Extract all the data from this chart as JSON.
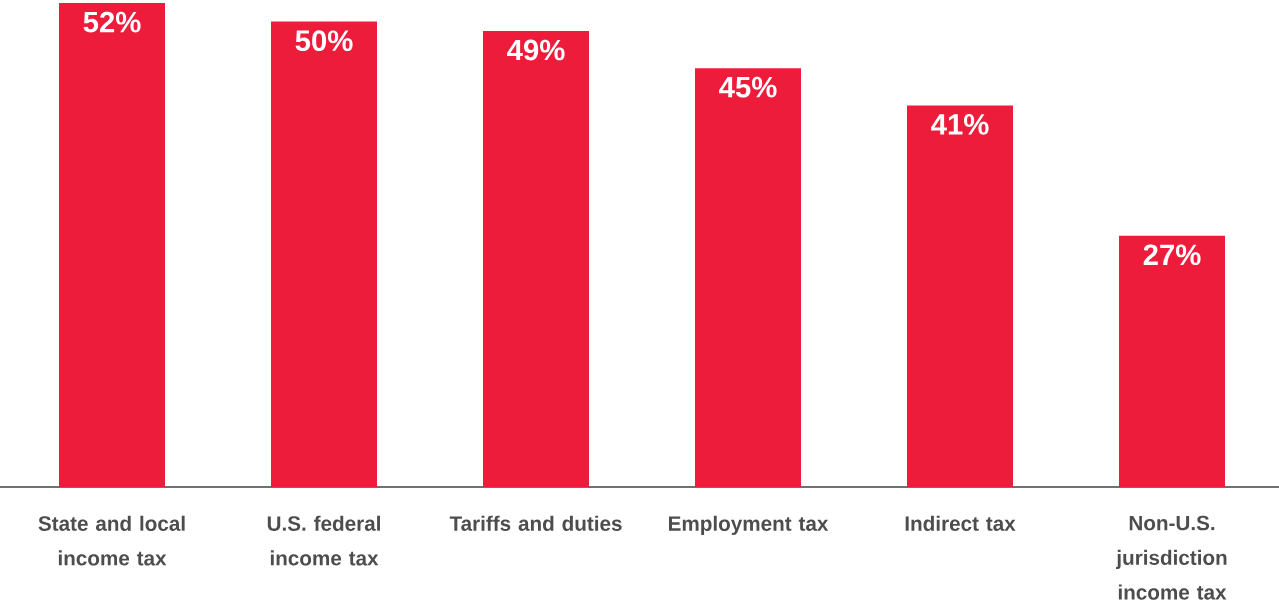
{
  "chart_data": {
    "type": "bar",
    "categories": [
      "State and local income tax",
      "U.S. federal income tax",
      "Tariffs and duties",
      "Employment tax",
      "Indirect tax",
      "Non-U.S. jurisdiction income tax"
    ],
    "values": [
      52,
      50,
      49,
      45,
      41,
      27
    ],
    "value_labels": [
      "52%",
      "50%",
      "49%",
      "45%",
      "41%",
      "27%"
    ],
    "color": "#ed1c3a"
  }
}
